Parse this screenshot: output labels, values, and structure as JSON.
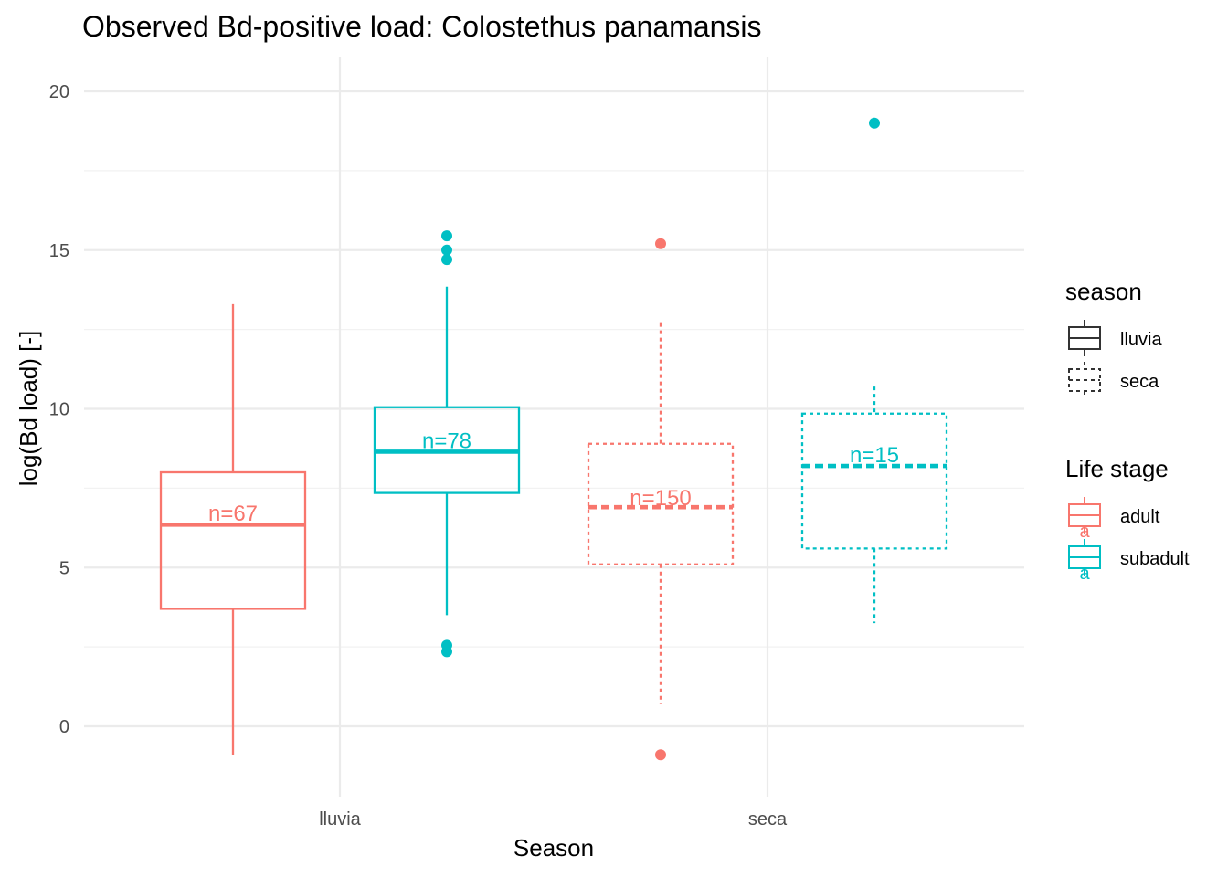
{
  "chart_data": {
    "type": "box",
    "title": "Observed Bd-positive load: Colostethus panamansis",
    "xlabel": "Season",
    "ylabel": "log(Bd load) [-]",
    "categories": [
      "lluvia",
      "seca"
    ],
    "ylim": [
      -2.2,
      21.0
    ],
    "yticks": [
      0,
      5,
      10,
      15,
      20
    ],
    "grid": true,
    "legend_position": "right",
    "legends": [
      {
        "title": "season",
        "items": [
          {
            "label": "lluvia",
            "linetype": "solid"
          },
          {
            "label": "seca",
            "linetype": "dotted"
          }
        ]
      },
      {
        "title": "Life stage",
        "items": [
          {
            "label": "adult",
            "color": "#F8766D"
          },
          {
            "label": "subadult",
            "color": "#00BFC4"
          }
        ]
      }
    ],
    "series": [
      {
        "name": "adult",
        "color": "#F8766D",
        "boxes": [
          {
            "season": "lluvia",
            "linetype": "solid",
            "whisker_low": -0.9,
            "q1": 3.7,
            "median": 6.35,
            "q3": 8.0,
            "whisker_high": 13.3,
            "outliers": [],
            "n_label": "n=67",
            "n_label_y": 6.7
          },
          {
            "season": "seca",
            "linetype": "dotted",
            "whisker_low": 0.7,
            "q1": 5.1,
            "median": 6.9,
            "q3": 8.9,
            "whisker_high": 12.7,
            "outliers": [
              15.2,
              -0.9
            ],
            "n_label": "n=150",
            "n_label_y": 7.2
          }
        ]
      },
      {
        "name": "subadult",
        "color": "#00BFC4",
        "boxes": [
          {
            "season": "lluvia",
            "linetype": "solid",
            "whisker_low": 3.5,
            "q1": 7.35,
            "median": 8.65,
            "q3": 10.05,
            "whisker_high": 13.85,
            "outliers": [
              15.45,
              15.0,
              14.7,
              2.55,
              2.35
            ],
            "n_label": "n=78",
            "n_label_y": 9.0
          },
          {
            "season": "seca",
            "linetype": "dotted",
            "whisker_low": 3.25,
            "q1": 5.6,
            "median": 8.2,
            "q3": 9.85,
            "whisker_high": 10.7,
            "outliers": [
              19.0
            ],
            "n_label": "n=15",
            "n_label_y": 8.55
          }
        ]
      }
    ]
  }
}
